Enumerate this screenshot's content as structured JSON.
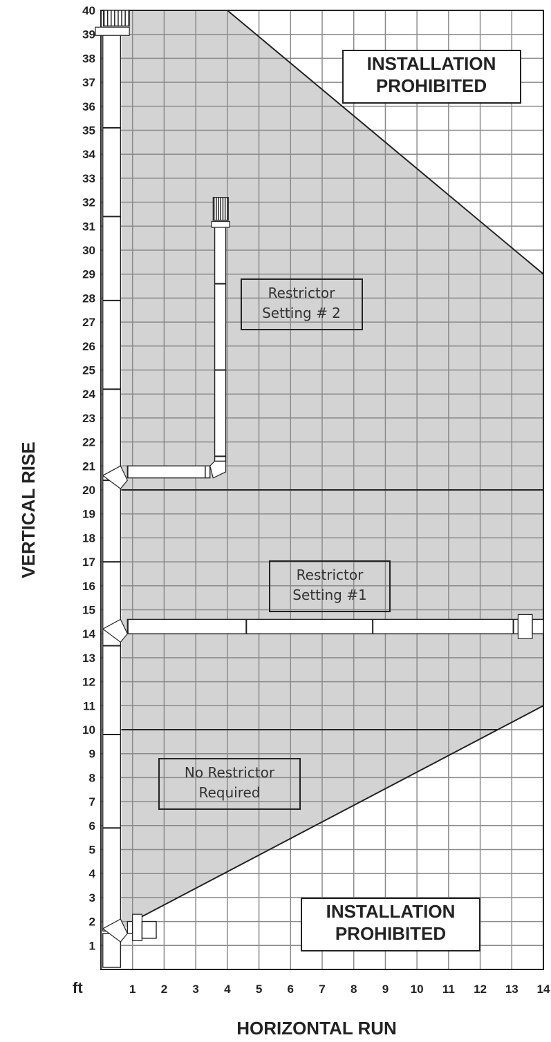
{
  "axes": {
    "y_unit": "ft",
    "y_title": "VERTICAL RISE",
    "x_title": "HORIZONTAL RUN",
    "y_ticks": [
      "1",
      "2",
      "3",
      "4",
      "5",
      "6",
      "7",
      "8",
      "9",
      "10",
      "11",
      "12",
      "13",
      "14",
      "15",
      "16",
      "17",
      "18",
      "19",
      "20",
      "21",
      "22",
      "23",
      "24",
      "25",
      "26",
      "27",
      "28",
      "29",
      "30",
      "31",
      "32",
      "33",
      "34",
      "35",
      "36",
      "37",
      "38",
      "39",
      "40"
    ],
    "x_ticks": [
      "1",
      "2",
      "3",
      "4",
      "5",
      "6",
      "7",
      "8",
      "9",
      "10",
      "11",
      "12",
      "13",
      "14"
    ],
    "x_range": [
      0,
      14
    ],
    "y_range": [
      0,
      40
    ]
  },
  "zones": {
    "prohibited_top": {
      "line1": "INSTALLATION",
      "line2": "PROHIBITED"
    },
    "prohibited_bottom": {
      "line1": "INSTALLATION",
      "line2": "PROHIBITED"
    },
    "restrictor_2": {
      "line1": "Restrictor",
      "line2": "Setting # 2"
    },
    "restrictor_1": {
      "line1": "Restrictor",
      "line2": "Setting #1"
    },
    "no_restrictor": {
      "line1": "No Restrictor",
      "line2": "Required"
    }
  },
  "boundaries": {
    "upper_line": [
      [
        4,
        40
      ],
      [
        14,
        29
      ]
    ],
    "lower_line": [
      [
        1,
        2
      ],
      [
        14,
        11
      ]
    ],
    "threshold_20": 20,
    "threshold_10": 10
  },
  "colors": {
    "allowed_fill": "#d3d3d3",
    "grid": "#8a8a8a",
    "line": "#222222"
  }
}
